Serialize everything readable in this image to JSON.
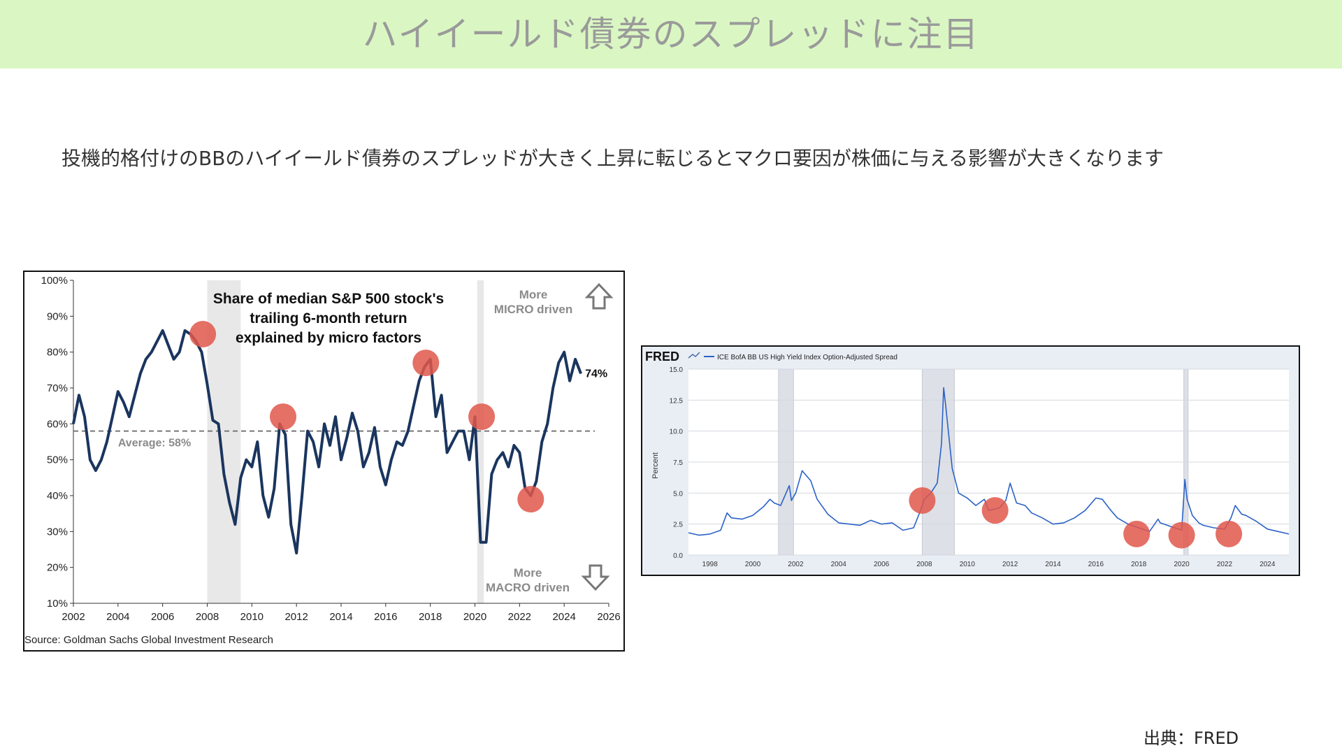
{
  "page": {
    "title": "ハイイールド債券のスプレッドに注目",
    "subtitle": "投機的格付けのBBのハイイールド債券のスプレッドが大きく上昇に転じるとマクロ要因が株価に与える影響が大きくなります",
    "source_note": "出典：FRED"
  },
  "colors": {
    "title_band": "#daf7c3",
    "line1": "#1a355e",
    "line2": "#2b62c8",
    "marker": "#e0574b",
    "recession": "#e8e8e8"
  },
  "chart_data": [
    {
      "type": "line",
      "title": "Share of median S&P 500 stock's trailing 6-month return explained by micro factors",
      "title_lines": [
        "Share of median S&P 500 stock's",
        "trailing 6-month return",
        "explained by micro factors"
      ],
      "xlim": [
        2002,
        2026
      ],
      "ylim": [
        10,
        100
      ],
      "x_ticks": [
        "2002",
        "2004",
        "2006",
        "2008",
        "2010",
        "2012",
        "2014",
        "2016",
        "2018",
        "2020",
        "2022",
        "2024",
        "2026"
      ],
      "y_ticks": [
        "10%",
        "20%",
        "30%",
        "40%",
        "50%",
        "60%",
        "70%",
        "80%",
        "90%",
        "100%"
      ],
      "average": {
        "value": 58,
        "label": "Average: 58%"
      },
      "last_label": "74%",
      "annotation_top": [
        "More",
        "MICRO driven"
      ],
      "annotation_bottom": [
        "More",
        "MACRO driven"
      ],
      "source": "Source: Goldman Sachs Global Investment Research",
      "shaded_ranges": [
        [
          2008.0,
          2009.5
        ],
        [
          2020.1,
          2020.4
        ]
      ],
      "markers": [
        [
          2007.8,
          85
        ],
        [
          2011.4,
          62
        ],
        [
          2017.8,
          77
        ],
        [
          2020.3,
          62
        ],
        [
          2022.5,
          39
        ]
      ],
      "series": [
        {
          "x": [
            2002.0,
            2002.25,
            2002.5,
            2002.75,
            2003.0,
            2003.25,
            2003.5,
            2003.75,
            2004.0,
            2004.25,
            2004.5,
            2004.75,
            2005.0,
            2005.25,
            2005.5,
            2005.75,
            2006.0,
            2006.25,
            2006.5,
            2006.75,
            2007.0,
            2007.25,
            2007.5,
            2007.75,
            2008.0,
            2008.25,
            2008.5,
            2008.75,
            2009.0,
            2009.25,
            2009.5,
            2009.75,
            2010.0,
            2010.25,
            2010.5,
            2010.75,
            2011.0,
            2011.25,
            2011.5,
            2011.75,
            2012.0,
            2012.25,
            2012.5,
            2012.75,
            2013.0,
            2013.25,
            2013.5,
            2013.75,
            2014.0,
            2014.25,
            2014.5,
            2014.75,
            2015.0,
            2015.25,
            2015.5,
            2015.75,
            2016.0,
            2016.25,
            2016.5,
            2016.75,
            2017.0,
            2017.25,
            2017.5,
            2017.75,
            2018.0,
            2018.25,
            2018.5,
            2018.75,
            2019.0,
            2019.25,
            2019.5,
            2019.75,
            2020.0,
            2020.25,
            2020.5,
            2020.75,
            2021.0,
            2021.25,
            2021.5,
            2021.75,
            2022.0,
            2022.25,
            2022.5,
            2022.75,
            2023.0,
            2023.25,
            2023.5,
            2023.75,
            2024.0,
            2024.25,
            2024.5,
            2024.75
          ],
          "y": [
            60,
            68,
            62,
            50,
            47,
            50,
            55,
            62,
            69,
            66,
            62,
            68,
            74,
            78,
            80,
            83,
            86,
            82,
            78,
            80,
            86,
            85,
            83,
            80,
            71,
            61,
            60,
            46,
            38,
            32,
            45,
            50,
            48,
            55,
            40,
            34,
            42,
            60,
            57,
            32,
            24,
            40,
            58,
            55,
            48,
            60,
            54,
            62,
            50,
            56,
            63,
            58,
            48,
            52,
            59,
            48,
            43,
            50,
            55,
            54,
            58,
            65,
            72,
            76,
            78,
            62,
            68,
            52,
            55,
            58,
            58,
            50,
            62,
            27,
            27,
            46,
            50,
            52,
            48,
            54,
            52,
            42,
            40,
            44,
            55,
            60,
            70,
            77,
            80,
            72,
            78,
            74
          ]
        }
      ]
    },
    {
      "type": "line",
      "brand": "FRED",
      "legend": "ICE BofA BB US High Yield Index Option-Adjusted Spread",
      "ylabel": "Percent",
      "xlim": [
        1997,
        2025
      ],
      "ylim": [
        0,
        15
      ],
      "x_ticks": [
        "1998",
        "2000",
        "2002",
        "2004",
        "2006",
        "2008",
        "2010",
        "2012",
        "2014",
        "2016",
        "2018",
        "2020",
        "2022",
        "2024"
      ],
      "y_ticks": [
        "0.0",
        "2.5",
        "5.0",
        "7.5",
        "10.0",
        "12.5",
        "15.0"
      ],
      "shaded_ranges": [
        [
          2001.2,
          2001.9
        ],
        [
          2007.9,
          2009.4
        ],
        [
          2020.1,
          2020.3
        ]
      ],
      "markers": [
        [
          2007.9,
          4.4
        ],
        [
          2011.3,
          3.6
        ],
        [
          2017.9,
          1.7
        ],
        [
          2020.0,
          1.6
        ],
        [
          2022.2,
          1.7
        ]
      ],
      "series": [
        {
          "x": [
            1997.0,
            1997.5,
            1998.0,
            1998.5,
            1998.8,
            1999.0,
            1999.5,
            2000.0,
            2000.5,
            2000.8,
            2001.0,
            2001.3,
            2001.7,
            2001.8,
            2002.0,
            2002.3,
            2002.7,
            2003.0,
            2003.5,
            2004.0,
            2004.5,
            2005.0,
            2005.5,
            2006.0,
            2006.5,
            2007.0,
            2007.5,
            2007.8,
            2008.0,
            2008.3,
            2008.6,
            2008.8,
            2008.9,
            2009.0,
            2009.3,
            2009.6,
            2010.0,
            2010.4,
            2010.8,
            2011.0,
            2011.5,
            2011.8,
            2012.0,
            2012.3,
            2012.7,
            2013.0,
            2013.5,
            2014.0,
            2014.5,
            2015.0,
            2015.5,
            2016.0,
            2016.3,
            2016.7,
            2017.0,
            2017.5,
            2018.0,
            2018.5,
            2018.9,
            2019.0,
            2019.5,
            2020.0,
            2020.15,
            2020.25,
            2020.5,
            2020.8,
            2021.0,
            2021.5,
            2022.0,
            2022.3,
            2022.5,
            2022.8,
            2023.0,
            2023.5,
            2024.0,
            2024.5,
            2025.0
          ],
          "y": [
            1.8,
            1.6,
            1.7,
            2.0,
            3.4,
            3.0,
            2.9,
            3.2,
            3.9,
            4.5,
            4.2,
            4.0,
            5.6,
            4.4,
            5.0,
            6.8,
            6.0,
            4.5,
            3.3,
            2.6,
            2.5,
            2.4,
            2.8,
            2.5,
            2.6,
            2.0,
            2.2,
            3.5,
            4.5,
            5.0,
            5.8,
            9.0,
            13.5,
            12.0,
            7.0,
            5.0,
            4.6,
            4.0,
            4.5,
            3.6,
            3.8,
            4.4,
            5.8,
            4.2,
            4.0,
            3.4,
            3.0,
            2.5,
            2.6,
            3.0,
            3.6,
            4.6,
            4.5,
            3.6,
            3.0,
            2.5,
            2.2,
            1.9,
            2.9,
            2.6,
            2.3,
            2.0,
            6.1,
            4.5,
            3.2,
            2.6,
            2.4,
            2.2,
            2.1,
            3.0,
            4.0,
            3.3,
            3.2,
            2.7,
            2.1,
            1.9,
            1.7
          ]
        }
      ]
    }
  ]
}
